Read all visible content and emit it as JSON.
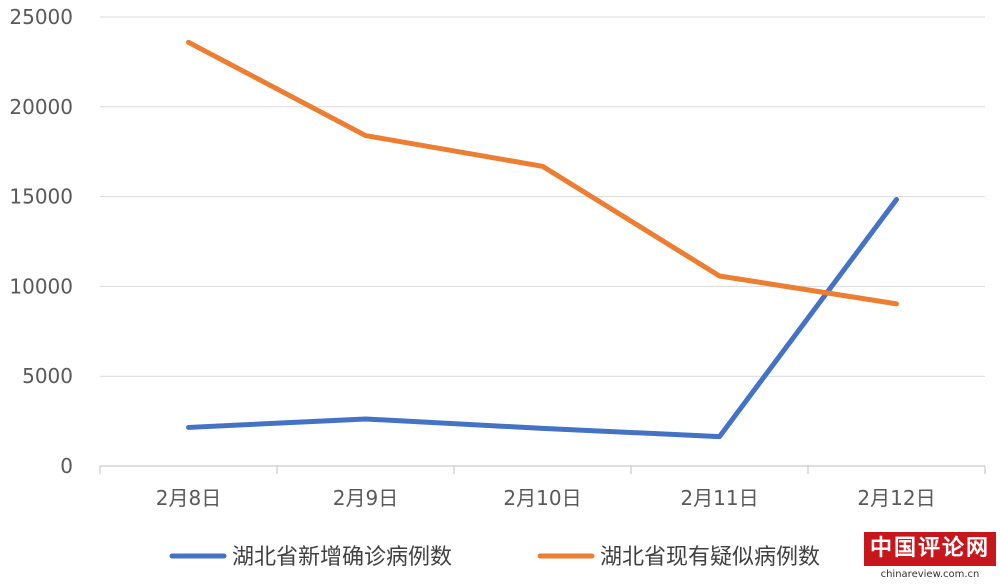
{
  "chart_data": {
    "type": "line",
    "categories": [
      "2月8日",
      "2月9日",
      "2月10日",
      "2月11日",
      "2月12日"
    ],
    "ylim": [
      0,
      25000
    ],
    "yticks": [
      0,
      5000,
      10000,
      15000,
      20000,
      25000
    ],
    "grid": true,
    "legend_position": "bottom",
    "series": [
      {
        "name": "湖北省新增确诊病例数",
        "color": "#4472c4",
        "values": [
          2147,
          2618,
          2097,
          1638,
          14840
        ]
      },
      {
        "name": "湖北省现有疑似病例数",
        "color": "#ed7d31",
        "values": [
          23590,
          18400,
          16687,
          10580,
          9028
        ]
      }
    ]
  },
  "watermark": {
    "title": "中国评论网",
    "url": "chinareview.com.cn"
  }
}
